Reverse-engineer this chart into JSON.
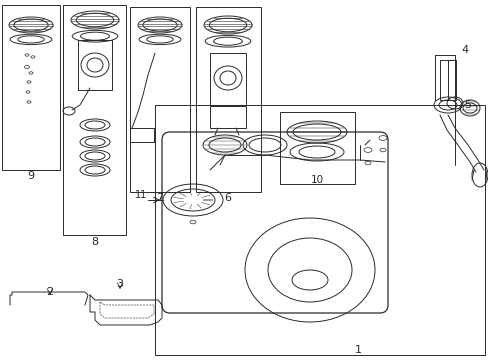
{
  "bg_color": "#ffffff",
  "line_color": "#2a2a2a",
  "lw": 0.7,
  "fig_w": 4.89,
  "fig_h": 3.6,
  "dpi": 100
}
